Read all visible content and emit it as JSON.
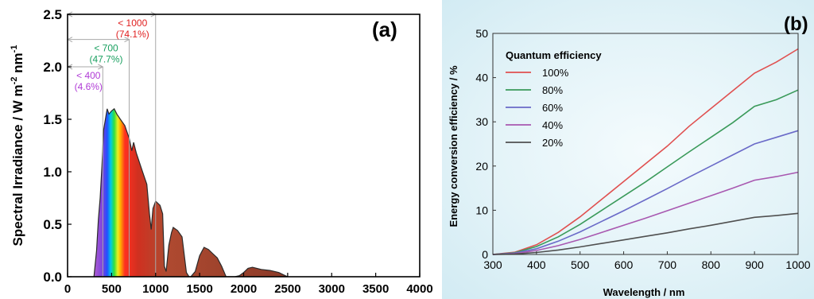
{
  "chart_data": [
    {
      "panel_label": "(a)",
      "type": "area",
      "xlabel": "",
      "ylabel": "Spectral Irradiance / W m",
      "ylabel_sup1": "-2",
      "ylabel_mid": " nm",
      "ylabel_sup2": "-1",
      "xlim": [
        0,
        4000
      ],
      "ylim": [
        0,
        2.5
      ],
      "xticks": [
        "0",
        "500",
        "1000",
        "1500",
        "2000",
        "2500",
        "3000",
        "3500",
        "4000"
      ],
      "yticks": [
        "0.0",
        "0.5",
        "1.0",
        "1.5",
        "2.0",
        "2.5"
      ],
      "grid": false,
      "spectrum": {
        "x": [
          300,
          330,
          350,
          370,
          390,
          410,
          430,
          450,
          470,
          500,
          530,
          560,
          600,
          650,
          700,
          730,
          750,
          780,
          820,
          860,
          900,
          930,
          950,
          970,
          1000,
          1050,
          1080,
          1100,
          1120,
          1150,
          1180,
          1200,
          1250,
          1300,
          1350,
          1380,
          1400,
          1450,
          1500,
          1550,
          1600,
          1650,
          1700,
          1750,
          1800,
          1850,
          1900,
          1950,
          2000,
          2050,
          2100,
          2150,
          2200,
          2300,
          2400,
          2450,
          2500
        ],
        "y": [
          0.0,
          0.25,
          0.55,
          0.75,
          1.05,
          1.4,
          1.5,
          1.6,
          1.55,
          1.58,
          1.6,
          1.55,
          1.5,
          1.44,
          1.32,
          1.2,
          1.28,
          1.18,
          1.08,
          0.98,
          0.88,
          0.6,
          0.45,
          0.65,
          0.72,
          0.68,
          0.6,
          0.1,
          0.05,
          0.3,
          0.42,
          0.47,
          0.44,
          0.38,
          0.04,
          0.0,
          0.0,
          0.05,
          0.2,
          0.28,
          0.26,
          0.22,
          0.18,
          0.1,
          0.0,
          0.0,
          0.0,
          0.01,
          0.04,
          0.08,
          0.09,
          0.08,
          0.07,
          0.06,
          0.04,
          0.02,
          0.0
        ]
      },
      "brackets": [
        {
          "label": "< 400",
          "percent": "(4.6%)",
          "x_end": 400,
          "y": 2.0,
          "color": "#b03bd6"
        },
        {
          "label": "< 700",
          "percent": "(47.7%)",
          "x_end": 700,
          "y": 2.26,
          "color": "#1aa060"
        },
        {
          "label": "< 1000",
          "percent": "(74.1%)",
          "x_end": 1000,
          "y": 2.5,
          "color": "#e02020"
        }
      ]
    },
    {
      "panel_label": "(b)",
      "type": "line",
      "xlabel": "Wavelength / nm",
      "ylabel": "Energy conversion efficiency / %",
      "xlim": [
        300,
        1000
      ],
      "ylim": [
        0,
        50
      ],
      "xticks": [
        "300",
        "400",
        "500",
        "600",
        "700",
        "800",
        "900",
        "1000"
      ],
      "yticks": [
        "0",
        "10",
        "20",
        "30",
        "40",
        "50"
      ],
      "grid": false,
      "legend_title": "Quantum efficiency",
      "legend_placement": "top-left",
      "x": [
        300,
        350,
        400,
        450,
        500,
        550,
        600,
        650,
        700,
        750,
        800,
        850,
        900,
        950,
        1000
      ],
      "series": [
        {
          "name": "100%",
          "color": "#e05050",
          "values": [
            0,
            0.5,
            2.2,
            5.0,
            8.5,
            12.5,
            16.5,
            20.5,
            24.5,
            29.0,
            33.0,
            37.0,
            41.0,
            43.5,
            46.5
          ]
        },
        {
          "name": "80%",
          "color": "#3a9a5a",
          "values": [
            0,
            0.4,
            1.8,
            4.0,
            6.8,
            10.0,
            13.2,
            16.4,
            19.8,
            23.2,
            26.5,
            29.8,
            33.5,
            35.0,
            37.2
          ]
        },
        {
          "name": "60%",
          "color": "#6a6ac8",
          "values": [
            0,
            0.3,
            1.3,
            3.0,
            5.1,
            7.5,
            9.9,
            12.4,
            14.9,
            17.5,
            20.0,
            22.5,
            25.0,
            26.5,
            28.0
          ]
        },
        {
          "name": "40%",
          "color": "#a858b0",
          "values": [
            0,
            0.2,
            0.9,
            2.0,
            3.4,
            5.0,
            6.6,
            8.2,
            9.9,
            11.6,
            13.3,
            15.0,
            16.8,
            17.6,
            18.6
          ]
        },
        {
          "name": "20%",
          "color": "#505050",
          "values": [
            0,
            0.1,
            0.45,
            1.0,
            1.7,
            2.5,
            3.3,
            4.1,
            4.9,
            5.8,
            6.6,
            7.5,
            8.4,
            8.8,
            9.3
          ]
        }
      ]
    }
  ]
}
